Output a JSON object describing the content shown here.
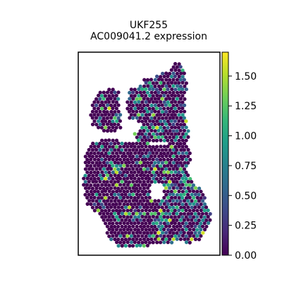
{
  "chart_data": {
    "type": "scatter",
    "title": "UKF255",
    "subtitle": "AC009041.2 expression",
    "xlabel": "",
    "ylabel": "",
    "grid": false,
    "colormap": "viridis",
    "colormap_stops": [
      "#440154",
      "#482878",
      "#3e4a89",
      "#31688e",
      "#26828e",
      "#1f9e89",
      "#35b779",
      "#6ece58",
      "#b5de2b",
      "#fde725"
    ],
    "colorbar": {
      "range": [
        0.0,
        1.7
      ],
      "ticks": [
        0.0,
        0.25,
        0.5,
        0.75,
        1.0,
        1.25,
        1.5
      ],
      "tick_labels": [
        "0.00",
        "0.25",
        "0.50",
        "0.75",
        "1.00",
        "1.25",
        "1.50"
      ]
    },
    "expression_summary": {
      "max_value": 1.7,
      "typical_value": 0.0,
      "hotspot_values": [
        1.6,
        1.5,
        1.4,
        1.1,
        1.0,
        0.9,
        0.8
      ]
    }
  }
}
